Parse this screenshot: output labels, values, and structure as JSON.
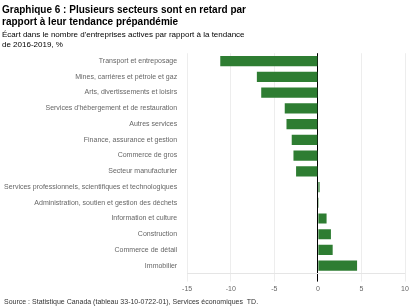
{
  "chart_data": {
    "type": "bar",
    "orientation": "horizontal",
    "title": "Graphique 6 : Plusieurs secteurs sont en retard par\nrapport à leur tendance prépandémie",
    "subtitle": "Écart dans le nombre d'entreprises actives par rapport à la tendance\nde 2016-2019, %",
    "source": "Source : Statistique Canada (tableau 33-10-0722-01), Services économiques  TD.",
    "categories": [
      "Transport et entreposage",
      "Mines, carrières et pétrole et gaz",
      "Arts, divertissements et loisirs",
      "Services d'hébergement et de restauration",
      "Autres services",
      "Finance, assurance et gestion",
      "Commerce de gros",
      "Secteur manufacturier",
      "Services professionnels, scientifiques et technologiques",
      "Administration, soutien et gestion des déchets",
      "Information et culture",
      "Construction",
      "Commerce de détail",
      "Immobilier"
    ],
    "values": [
      -11.2,
      -7.0,
      -6.5,
      -3.8,
      -3.6,
      -3.0,
      -2.8,
      -2.5,
      0.2,
      0.1,
      1.0,
      1.5,
      1.7,
      4.5
    ],
    "color": "#2e7d32",
    "xlim": [
      -15,
      10
    ],
    "xticks": [
      -15,
      -10,
      -5,
      0,
      5,
      10
    ],
    "grid": true
  }
}
